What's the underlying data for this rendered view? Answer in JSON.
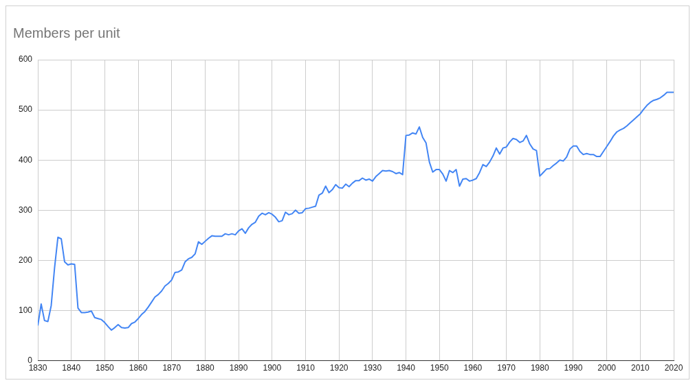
{
  "chart_data": {
    "type": "line",
    "title": "Members per unit",
    "x": [
      1830,
      1831,
      1832,
      1833,
      1834,
      1835,
      1836,
      1837,
      1838,
      1839,
      1840,
      1841,
      1842,
      1843,
      1844,
      1845,
      1846,
      1847,
      1848,
      1849,
      1850,
      1851,
      1852,
      1853,
      1854,
      1855,
      1856,
      1857,
      1858,
      1859,
      1860,
      1861,
      1862,
      1863,
      1864,
      1865,
      1866,
      1867,
      1868,
      1869,
      1870,
      1871,
      1872,
      1873,
      1874,
      1875,
      1876,
      1877,
      1878,
      1879,
      1880,
      1881,
      1882,
      1883,
      1884,
      1885,
      1886,
      1887,
      1888,
      1889,
      1890,
      1891,
      1892,
      1893,
      1894,
      1895,
      1896,
      1897,
      1898,
      1899,
      1900,
      1901,
      1902,
      1903,
      1904,
      1905,
      1906,
      1907,
      1908,
      1909,
      1910,
      1911,
      1912,
      1913,
      1914,
      1915,
      1916,
      1917,
      1918,
      1919,
      1920,
      1921,
      1922,
      1923,
      1924,
      1925,
      1926,
      1927,
      1928,
      1929,
      1930,
      1931,
      1932,
      1933,
      1934,
      1935,
      1936,
      1937,
      1938,
      1939,
      1940,
      1941,
      1942,
      1943,
      1944,
      1945,
      1946,
      1947,
      1948,
      1949,
      1950,
      1951,
      1952,
      1953,
      1954,
      1955,
      1956,
      1957,
      1958,
      1959,
      1960,
      1961,
      1962,
      1963,
      1964,
      1965,
      1966,
      1967,
      1968,
      1969,
      1970,
      1971,
      1972,
      1973,
      1974,
      1975,
      1976,
      1977,
      1978,
      1979,
      1980,
      1981,
      1982,
      1983,
      1984,
      1985,
      1986,
      1987,
      1988,
      1989,
      1990,
      1991,
      1992,
      1993,
      1994,
      1995,
      1996,
      1997,
      1998,
      1999,
      2000,
      2001,
      2002,
      2003,
      2004,
      2005,
      2006,
      2007,
      2008,
      2009,
      2010,
      2011,
      2012,
      2013,
      2014,
      2015,
      2016,
      2017,
      2018,
      2019,
      2020
    ],
    "series": [
      {
        "color": "#4285f4",
        "values": [
          70,
          113,
          80,
          78,
          110,
          185,
          246,
          243,
          197,
          191,
          193,
          192,
          105,
          96,
          96,
          97,
          99,
          86,
          84,
          82,
          76,
          68,
          61,
          66,
          72,
          66,
          65,
          66,
          74,
          77,
          84,
          92,
          98,
          107,
          117,
          127,
          132,
          139,
          149,
          154,
          161,
          176,
          177,
          181,
          197,
          203,
          206,
          213,
          237,
          232,
          238,
          244,
          249,
          248,
          248,
          248,
          253,
          251,
          253,
          251,
          259,
          263,
          254,
          265,
          272,
          276,
          288,
          294,
          291,
          295,
          292,
          286,
          277,
          279,
          296,
          291,
          293,
          300,
          294,
          295,
          303,
          304,
          306,
          308,
          330,
          334,
          348,
          335,
          341,
          351,
          345,
          344,
          352,
          347,
          354,
          359,
          359,
          364,
          360,
          362,
          358,
          367,
          373,
          379,
          378,
          379,
          377,
          373,
          375,
          371,
          449,
          450,
          454,
          452,
          466,
          445,
          434,
          396,
          376,
          381,
          381,
          372,
          358,
          379,
          375,
          381,
          348,
          362,
          363,
          358,
          360,
          363,
          375,
          391,
          387,
          396,
          408,
          424,
          412,
          424,
          426,
          436,
          443,
          441,
          435,
          438,
          449,
          432,
          422,
          419,
          368,
          375,
          382,
          383,
          389,
          394,
          400,
          398,
          406,
          422,
          428,
          428,
          417,
          411,
          413,
          411,
          411,
          407,
          407,
          417,
          427,
          437,
          448,
          456,
          460,
          463,
          468,
          474,
          480,
          486,
          492,
          501,
          509,
          515,
          519,
          521,
          524,
          529,
          535,
          535,
          535
        ]
      }
    ],
    "xlim": [
      1830,
      2020
    ],
    "xticks": [
      1830,
      1840,
      1850,
      1860,
      1870,
      1880,
      1890,
      1900,
      1910,
      1920,
      1930,
      1940,
      1950,
      1960,
      1970,
      1980,
      1990,
      2000,
      2010,
      2020
    ],
    "ylim": [
      0,
      600
    ],
    "yticks": [
      0,
      100,
      200,
      300,
      400,
      500,
      600
    ],
    "grid": true,
    "legend": false
  }
}
